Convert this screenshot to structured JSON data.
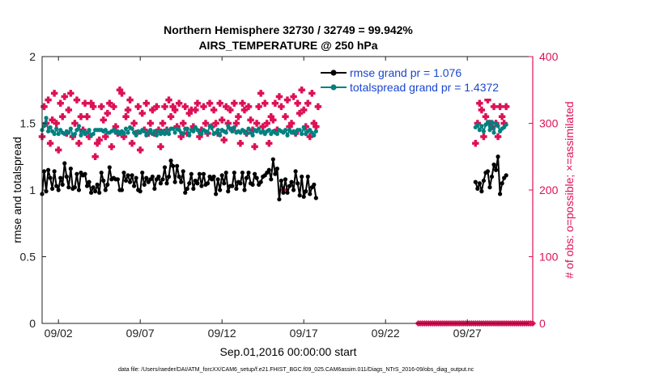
{
  "chart_data": {
    "type": "line",
    "title_line1": "Northern Hemisphere 32730 / 32749 = 99.942%",
    "title_line2": "AIRS_TEMPERATURE @ 250 hPa",
    "xlabel": "Sep.01,2016 00:00:00 start",
    "ylabel_left": "rmse and totalspread",
    "ylabel_right": "# of obs: o=possible; ×=assimilated",
    "footnote": "data file: /Users/raeder/DAI/ATM_forcXX/CAM6_setup/f.e21.FHIST_BGC.f09_025.CAM6assim.011/Diags_NTrS_2016-09/obs_diag_output.nc",
    "xlim": [
      1,
      31
    ],
    "ylim_left": [
      0,
      2
    ],
    "ylim_right": [
      0,
      400
    ],
    "x_ticks": [
      {
        "value": 2,
        "label": "09/02"
      },
      {
        "value": 7,
        "label": "09/07"
      },
      {
        "value": 12,
        "label": "09/12"
      },
      {
        "value": 17,
        "label": "09/17"
      },
      {
        "value": 22,
        "label": "09/22"
      },
      {
        "value": 27,
        "label": "09/27"
      }
    ],
    "y_ticks_left": [
      {
        "value": 0,
        "label": "0"
      },
      {
        "value": 0.5,
        "label": "0.5"
      },
      {
        "value": 1,
        "label": "1"
      },
      {
        "value": 1.5,
        "label": "1.5"
      },
      {
        "value": 2,
        "label": "2"
      }
    ],
    "y_ticks_right": [
      {
        "value": 0,
        "label": "0"
      },
      {
        "value": 100,
        "label": "100"
      },
      {
        "value": 200,
        "label": "200"
      },
      {
        "value": 300,
        "label": "300"
      },
      {
        "value": 400,
        "label": "400"
      }
    ],
    "x_step_days": 0.125,
    "series": [
      {
        "name": "rmse",
        "legend": "rmse grand pr = 1.076",
        "color": "#000000",
        "segments": [
          {
            "x_start": 1.0,
            "values": [
              0.97,
              1.14,
              0.99,
              1.15,
              1.09,
              1.01,
              1.14,
              1.03,
              1.0,
              1.09,
              1.04,
              1.2,
              1.1,
              1.02,
              1.16,
              1.01,
              1.02,
              1.12,
              1.0,
              1.13,
              1.11,
              1.12,
              1.03,
              1.06,
              0.98,
              1.02,
              0.99,
              1.04,
              0.98,
              1.13,
              1.07,
              1.0,
              1.04,
              1.17,
              1.08,
              1.09,
              1.08,
              1.08,
              1.0,
              1.0,
              1.13,
              1.07,
              1.11,
              1.06,
              1.11,
              1.03,
              1.09,
              1.0,
              0.99,
              1.13,
              1.04,
              1.09,
              1.06,
              1.08,
              1.1,
              1.01,
              1.08,
              1.1,
              1.05,
              1.08,
              1.17,
              1.05,
              1.1,
              1.22,
              1.18,
              1.06,
              1.18,
              1.1,
              1.06,
              1.14,
              0.98,
              1.01,
              1.05,
              1.12,
              1.01,
              1.07,
              1.05,
              1.12,
              1.03,
              1.12,
              1.04,
              1.05,
              1.1,
              1.08,
              1.1,
              0.97,
              1.08,
              1.0,
              1.11,
              1.05,
              1.13,
              0.99,
              1.03,
              1.03,
              1.13,
              1.01,
              1.06,
              1.05,
              1.13,
              1.0,
              1.09,
              1.13,
              1.05,
              1.04,
              1.12,
              1.09,
              1.04,
              1.06,
              1.1,
              1.11,
              1.13,
              1.15,
              1.08,
              1.23,
              1.12,
              1.16,
              0.93,
              1.07,
              0.98,
              1.08,
              0.98,
              1.03,
              1.06,
              1.0,
              1.14,
              1.05,
              0.96,
              1.1,
              0.95,
              0.99,
              1.1,
              0.97,
              1.02,
              1.04,
              0.94
            ]
          },
          {
            "x_start": 27.5,
            "values": [
              1.06,
              1.01,
              1.05,
              0.99,
              1.07,
              1.13,
              1.14,
              1.02,
              1.1,
              1.19,
              1.15,
              1.25,
              0.97,
              1.05,
              1.09,
              1.11
            ]
          }
        ]
      },
      {
        "name": "totalspread",
        "legend": "totalspread grand pr = 1.4372",
        "color": "#008080",
        "segments": [
          {
            "x_start": 1.0,
            "values": [
              1.45,
              1.48,
              1.54,
              1.44,
              1.47,
              1.44,
              1.42,
              1.46,
              1.42,
              1.45,
              1.43,
              1.42,
              1.44,
              1.43,
              1.46,
              1.41,
              1.42,
              1.45,
              1.48,
              1.41,
              1.44,
              1.42,
              1.43,
              1.45,
              1.41,
              1.42,
              1.45,
              1.45,
              1.45,
              1.45,
              1.44,
              1.45,
              1.43,
              1.43,
              1.44,
              1.45,
              1.43,
              1.44,
              1.42,
              1.44,
              1.42,
              1.46,
              1.43,
              1.47,
              1.46,
              1.43,
              1.41,
              1.44,
              1.43,
              1.45,
              1.44,
              1.41,
              1.43,
              1.45,
              1.42,
              1.44,
              1.41,
              1.44,
              1.42,
              1.44,
              1.42,
              1.45,
              1.42,
              1.46,
              1.46,
              1.43,
              1.46,
              1.45,
              1.43,
              1.42,
              1.46,
              1.46,
              1.41,
              1.45,
              1.44,
              1.47,
              1.45,
              1.43,
              1.42,
              1.45,
              1.44,
              1.43,
              1.48,
              1.47,
              1.42,
              1.43,
              1.45,
              1.41,
              1.45,
              1.44,
              1.43,
              1.48,
              1.46,
              1.44,
              1.47,
              1.43,
              1.44,
              1.43,
              1.45,
              1.44,
              1.42,
              1.46,
              1.43,
              1.41,
              1.45,
              1.44,
              1.46,
              1.43,
              1.44,
              1.42,
              1.44,
              1.45,
              1.42,
              1.44,
              1.43,
              1.42,
              1.45,
              1.44,
              1.43,
              1.45,
              1.41,
              1.45,
              1.43,
              1.44,
              1.42,
              1.45,
              1.45,
              1.42,
              1.47,
              1.42,
              1.44,
              1.45,
              1.43,
              1.41,
              1.44
            ]
          },
          {
            "x_start": 27.5,
            "values": [
              1.47,
              1.49,
              1.45,
              1.48,
              1.44,
              1.49,
              1.51,
              1.45,
              1.51,
              1.43,
              1.5,
              1.48,
              1.44,
              1.46,
              1.47,
              1.49
            ]
          }
        ]
      }
    ],
    "obs_assimilated": {
      "color": "#dd1155",
      "segments": [
        {
          "x_start": 1.0,
          "values": [
            280,
            325,
            300,
            335,
            270,
            305,
            345,
            300,
            260,
            330,
            310,
            340,
            285,
            320,
            345,
            280,
            300,
            335,
            270,
            310,
            290,
            330,
            310,
            280,
            330,
            325,
            250,
            270,
            275,
            325,
            305,
            280,
            315,
            330,
            265,
            325,
            295,
            285,
            350,
            345,
            280,
            310,
            320,
            335,
            270,
            300,
            285,
            325,
            260,
            315,
            290,
            330,
            285,
            300,
            320,
            285,
            325,
            290,
            265,
            300,
            325,
            290,
            335,
            310,
            325,
            320,
            295,
            330,
            280,
            300,
            325,
            285,
            315,
            320,
            295,
            320,
            330,
            280,
            290,
            325,
            300,
            285,
            330,
            295,
            320,
            300,
            285,
            330,
            305,
            275,
            325,
            300,
            320,
            290,
            330,
            300,
            310,
            270,
            330,
            320,
            285,
            325,
            305,
            290,
            265,
            300,
            325,
            345,
            295,
            330,
            300,
            270,
            310,
            305,
            330,
            290,
            340,
            325,
            200,
            310,
            335,
            295,
            300,
            340,
            285,
            330,
            315,
            350,
            320,
            295,
            330,
            280,
            345,
            300,
            295,
            325
          ]
        },
        {
          "x_start": 27.5,
          "values": [
            270,
            300,
            330,
            320,
            280,
            310,
            335,
            300,
            295,
            325,
            300,
            280,
            325,
            310,
            300,
            325
          ]
        }
      ]
    },
    "obs_possible_zero": {
      "color": "#dd1155",
      "x_start": 24.0,
      "x_end": 31.0,
      "value": 0
    }
  }
}
